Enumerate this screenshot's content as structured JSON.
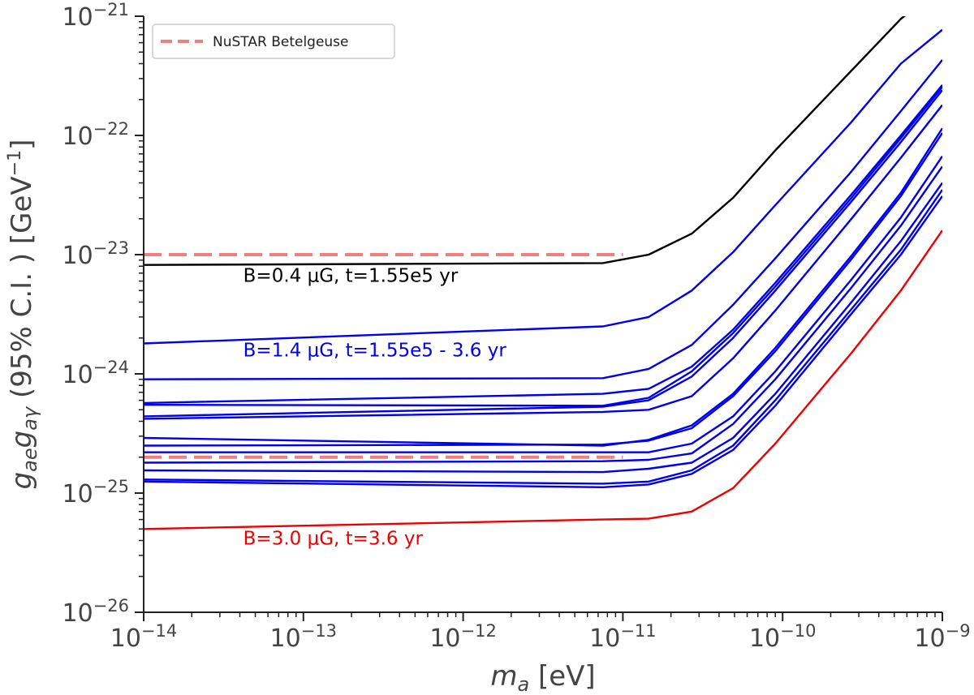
{
  "chart_data": {
    "type": "line",
    "xlabel": "m_a [eV]",
    "ylabel": "g_ae g_aγ (95% C.I. ) [GeV⁻¹]",
    "xscale": "log",
    "yscale": "log",
    "xlim": [
      1e-14,
      1e-09
    ],
    "ylim": [
      1e-26,
      1e-21
    ],
    "x_ticks": [
      {
        "value": 1e-14,
        "base": "10",
        "exp": "−14"
      },
      {
        "value": 1e-13,
        "base": "10",
        "exp": "−13"
      },
      {
        "value": 1e-12,
        "base": "10",
        "exp": "−12"
      },
      {
        "value": 1e-11,
        "base": "10",
        "exp": "−11"
      },
      {
        "value": 1e-10,
        "base": "10",
        "exp": "−10"
      },
      {
        "value": 1e-09,
        "base": "10",
        "exp": "−9"
      }
    ],
    "y_ticks": [
      {
        "value": 1e-26,
        "base": "10",
        "exp": "−26"
      },
      {
        "value": 1e-25,
        "base": "10",
        "exp": "−25"
      },
      {
        "value": 1e-24,
        "base": "10",
        "exp": "−24"
      },
      {
        "value": 1e-23,
        "base": "10",
        "exp": "−23"
      },
      {
        "value": 1e-22,
        "base": "10",
        "exp": "−22"
      },
      {
        "value": 1e-21,
        "base": "10",
        "exp": "−21"
      }
    ],
    "legend": {
      "position": "top-left",
      "entries": [
        {
          "label": "NuSTAR Betelgeuse",
          "color": "#f08080",
          "style": "dashed"
        }
      ]
    },
    "reference_lines": [
      {
        "name": "NuSTAR Betelgeuse",
        "y": 1e-23,
        "x_range": [
          1e-14,
          1e-11
        ],
        "color": "#f08080",
        "dashed": true
      },
      {
        "name": "NuSTAR Betelgeuse",
        "y": 2e-25,
        "x_range": [
          1e-14,
          1e-11
        ],
        "color": "#f08080",
        "dashed": true
      }
    ],
    "x": [
      1e-14,
      7.5e-12,
      1.45e-11,
      2.7e-11,
      4.9e-11,
      9e-11,
      2.7e-10,
      5.5e-10,
      1e-09
    ],
    "series": [
      {
        "color": "#000000",
        "values": [
          8.2e-24,
          8.5e-24,
          1e-23,
          1.5e-23,
          3e-23,
          7.5e-23,
          3.5e-22,
          9.5e-22,
          1.8e-21
        ]
      },
      {
        "color": "#0000ee",
        "values": [
          1.8e-24,
          2.5e-24,
          3e-24,
          5e-24,
          1.05e-23,
          2.6e-23,
          1.3e-22,
          4e-22,
          7.7e-22
        ]
      },
      {
        "color": "#0000ee",
        "values": [
          9e-25,
          9.2e-25,
          1.1e-24,
          1.75e-24,
          3.8e-24,
          9.3e-24,
          5e-23,
          1.6e-22,
          4.3e-22
        ]
      },
      {
        "color": "#0000ee",
        "values": [
          5.7e-25,
          6.8e-25,
          7.5e-25,
          1.15e-24,
          2.35e-24,
          5.8e-24,
          3.2e-23,
          1e-22,
          2.65e-22
        ]
      },
      {
        "color": "#0000ee",
        "values": [
          5.5e-25,
          5.4e-25,
          6.3e-25,
          1.05e-24,
          2.2e-24,
          5.4e-24,
          3e-23,
          9.5e-23,
          2.55e-22
        ]
      },
      {
        "color": "#0000ee",
        "values": [
          4.4e-25,
          5.3e-25,
          6e-25,
          9.5e-25,
          2e-24,
          5e-24,
          2.8e-23,
          8.8e-23,
          2.4e-22
        ]
      },
      {
        "color": "#0000ee",
        "values": [
          4.2e-25,
          4.8e-25,
          5e-25,
          6.5e-25,
          1.35e-24,
          3.4e-24,
          2e-23,
          6.5e-23,
          1.8e-22
        ]
      },
      {
        "color": "#0000ee",
        "values": [
          2.9e-25,
          2.5e-25,
          2.8e-25,
          3.7e-25,
          6.8e-25,
          1.65e-24,
          9.8e-24,
          3.3e-23,
          1.15e-22
        ]
      },
      {
        "color": "#0000ee",
        "values": [
          2.5e-25,
          2.55e-25,
          2.75e-25,
          3.5e-25,
          6.5e-25,
          1.55e-24,
          9.2e-24,
          3.1e-23,
          1.05e-22
        ]
      },
      {
        "color": "#0000ee",
        "values": [
          2.2e-25,
          2.2e-25,
          2.2e-25,
          2.6e-25,
          4.4e-25,
          1.05e-24,
          6.2e-24,
          2.05e-23,
          6.7e-23
        ]
      },
      {
        "color": "#0000ee",
        "values": [
          1.8e-25,
          1.85e-25,
          1.9e-25,
          2.15e-25,
          3.8e-25,
          9e-25,
          5.3e-24,
          1.75e-23,
          5.5e-23
        ]
      },
      {
        "color": "#0000ee",
        "values": [
          1.55e-25,
          1.5e-25,
          1.6e-25,
          1.8e-25,
          2.9e-25,
          6.8e-25,
          4e-24,
          1.3e-23,
          4e-23
        ]
      },
      {
        "color": "#0000ee",
        "values": [
          1.3e-25,
          1.2e-25,
          1.25e-25,
          1.55e-25,
          2.5e-25,
          6e-25,
          3.5e-24,
          1.1e-23,
          3.5e-23
        ]
      },
      {
        "color": "#0000ee",
        "values": [
          1.25e-25,
          1.12e-25,
          1.18e-25,
          1.45e-25,
          2.3e-25,
          5.4e-25,
          3.2e-24,
          1e-23,
          3.1e-23
        ]
      },
      {
        "color": "#ee0000",
        "values": [
          5e-26,
          6e-26,
          6.1e-26,
          7e-26,
          1.1e-25,
          2.6e-25,
          1.5e-24,
          5e-24,
          1.6e-23
        ]
      }
    ],
    "annotations": [
      {
        "text": "B=0.4 μG, t=1.55e5 yr",
        "color": "#000000",
        "x": 4.2e-14,
        "y": 5.9e-24
      },
      {
        "text": "B=1.4 μG, t=1.55e5 - 3.6 yr",
        "color": "#0000ee",
        "x": 4.2e-14,
        "y": 1.4e-24
      },
      {
        "text": "B=3.0 μG, t=3.6 yr",
        "color": "#ee0000",
        "x": 4.2e-14,
        "y": 3.7e-26
      }
    ],
    "grid": false
  }
}
